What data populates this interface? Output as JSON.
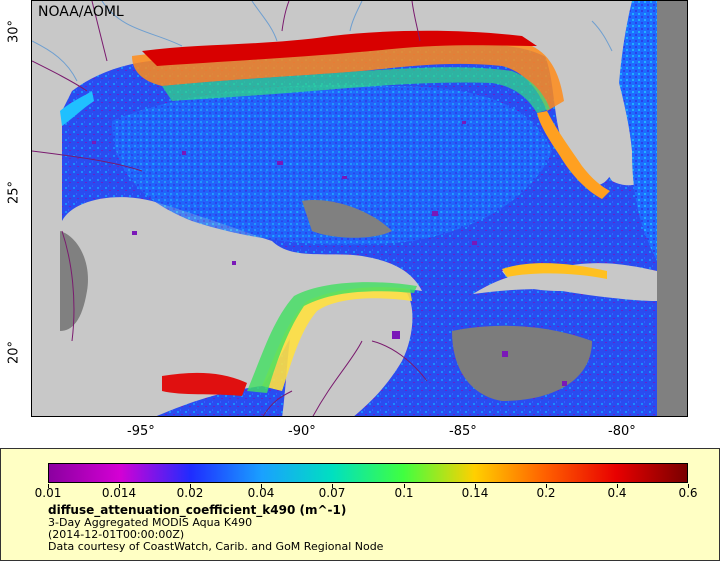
{
  "map": {
    "credit": "NOAA/AOML",
    "lat_ticks": [
      "30°",
      "25°",
      "20°"
    ],
    "lon_ticks": [
      "-95°",
      "-90°",
      "-85°",
      "-80°"
    ],
    "colors": {
      "land": "#c8c8c8",
      "nodata": "#808080",
      "border": "#7a1a6e",
      "river": "#6f9fd0"
    }
  },
  "legend": {
    "colorbar_ticks": [
      "0.01",
      "0.014",
      "0.02",
      "0.04",
      "0.07",
      "0.1",
      "0.14",
      "0.2",
      "0.4",
      "0.6"
    ],
    "colorbar_stops": [
      "#8b00a0",
      "#d400d4",
      "#1f2cff",
      "#1aa0ff",
      "#00e0c0",
      "#40ff40",
      "#ffd000",
      "#ff6000",
      "#e80000",
      "#7a0000"
    ],
    "variable": "diffuse_attenuation_coefficient_k490 (m^-1)",
    "line1": "3-Day Aggregated MODIS Aqua K490",
    "line2": "(2014-12-01T00:00:00Z)",
    "line3": "Data courtesy of CoastWatch, Carib. and GoM Regional Node"
  }
}
